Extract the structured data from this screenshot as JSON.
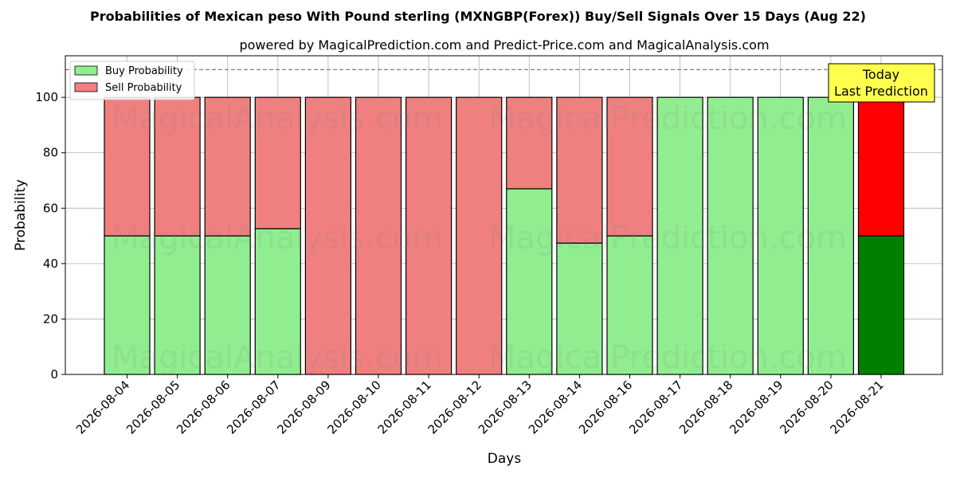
{
  "chart_data": {
    "type": "bar",
    "stacked": true,
    "title": "Probabilities of Mexican peso With Pound sterling (MXNGBP(Forex)) Buy/Sell Signals Over 15 Days (Aug 22)",
    "subtitle": "powered by MagicalPrediction.com and Predict-Price.com and MagicalAnalysis.com",
    "xlabel": "Days",
    "ylabel": "Probability",
    "ylim": [
      0,
      115
    ],
    "yticks": [
      0,
      20,
      40,
      60,
      80,
      100
    ],
    "reference_line": 110,
    "grid": true,
    "legend_position": "top-left",
    "categories": [
      "2026-08-04",
      "2026-08-05",
      "2026-08-06",
      "2026-08-07",
      "2026-08-09",
      "2026-08-10",
      "2026-08-11",
      "2026-08-12",
      "2026-08-13",
      "2026-08-14",
      "2026-08-16",
      "2026-08-17",
      "2026-08-18",
      "2026-08-19",
      "2026-08-20",
      "2026-08-21"
    ],
    "series": [
      {
        "name": "Buy Probability",
        "color": "#90ee90",
        "highlight_color": "#008000",
        "values": [
          50,
          50,
          50,
          52.6,
          0,
          0,
          0,
          0,
          67,
          47.4,
          50,
          100,
          100,
          100,
          100,
          50
        ]
      },
      {
        "name": "Sell Probability",
        "color": "#f08080",
        "highlight_color": "#ff0000",
        "values": [
          50,
          50,
          50,
          47.4,
          100,
          100,
          100,
          100,
          33,
          52.6,
          50,
          0,
          0,
          0,
          0,
          50
        ]
      }
    ],
    "highlight_index": 15,
    "annotation": {
      "line1": "Today",
      "line2": "Last Prediction",
      "color": "#ffff4d"
    },
    "watermarks": [
      "MagicalAnalysis.com",
      "MagicalPrediction.com"
    ]
  }
}
